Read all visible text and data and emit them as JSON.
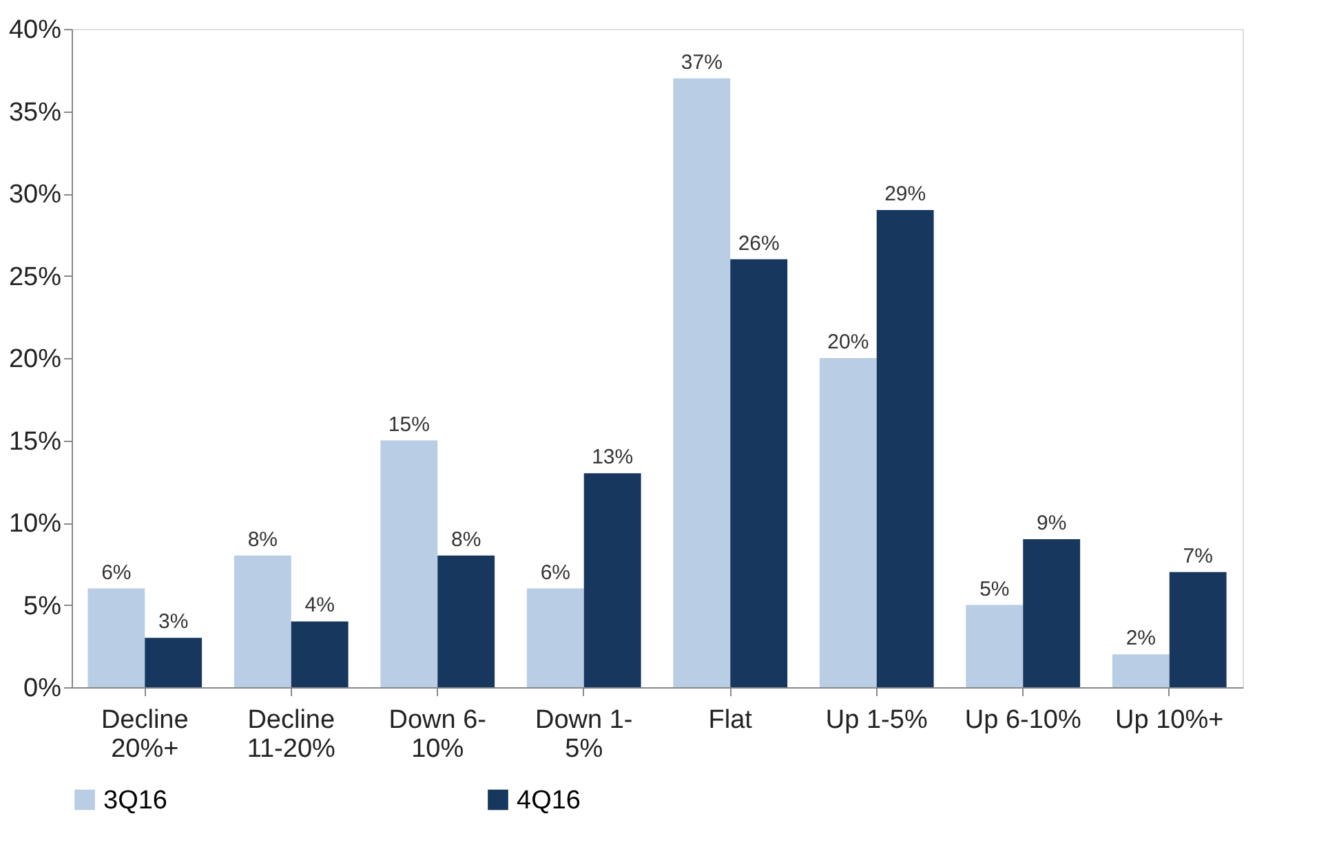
{
  "chart_data": {
    "type": "bar",
    "categories": [
      "Decline 20%+",
      "Decline 11-20%",
      "Down 6-10%",
      "Down 1-5%",
      "Flat",
      "Up 1-5%",
      "Up 6-10%",
      "Up 10%+"
    ],
    "series": [
      {
        "name": "3Q16",
        "color": "#b9cde5",
        "values": [
          6,
          8,
          15,
          6,
          37,
          20,
          5,
          2
        ],
        "value_labels": [
          "6%",
          "8%",
          "15%",
          "6%",
          "37%",
          "20%",
          "5%",
          "2%"
        ]
      },
      {
        "name": "4Q16",
        "color": "#17375e",
        "values": [
          3,
          4,
          8,
          13,
          26,
          29,
          9,
          7
        ],
        "value_labels": [
          "3%",
          "4%",
          "8%",
          "13%",
          "26%",
          "29%",
          "9%",
          "7%"
        ]
      }
    ],
    "ylim": [
      0,
      40
    ],
    "yticks": [
      {
        "value": 0,
        "label": "0%"
      },
      {
        "value": 5,
        "label": "5%"
      },
      {
        "value": 10,
        "label": "10%"
      },
      {
        "value": 15,
        "label": "15%"
      },
      {
        "value": 20,
        "label": "20%"
      },
      {
        "value": 25,
        "label": "25%"
      },
      {
        "value": 30,
        "label": "30%"
      },
      {
        "value": 35,
        "label": "35%"
      },
      {
        "value": 40,
        "label": "40%"
      }
    ],
    "grid": false,
    "legend": "bottom"
  }
}
